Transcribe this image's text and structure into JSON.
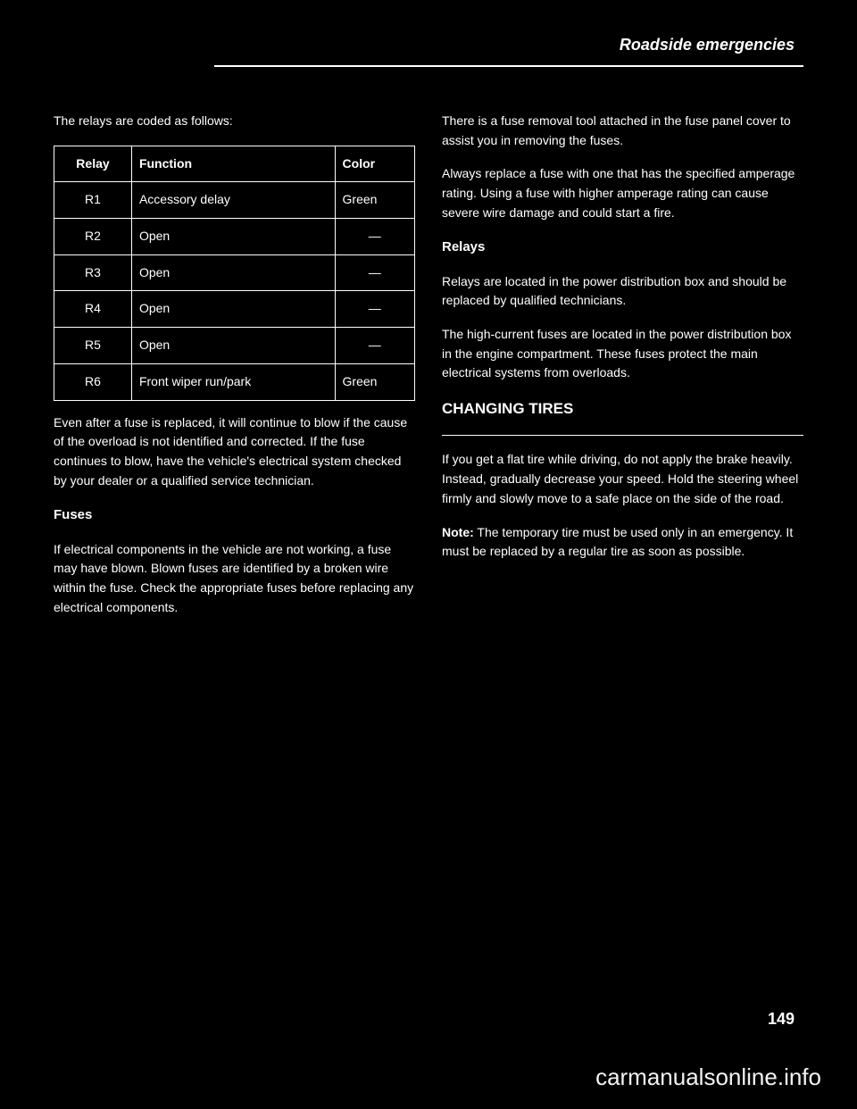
{
  "colors": {
    "background": "#000000",
    "text": "#ffffff",
    "border": "#ffffff"
  },
  "header": {
    "title": "Roadside emergencies"
  },
  "left": {
    "intro": "The relays are coded as follows:",
    "table": {
      "columns": [
        "Relay",
        "Function",
        "Color"
      ],
      "rows": [
        [
          "R1",
          "Accessory delay",
          "Green"
        ],
        [
          "R2",
          "Open",
          "—"
        ],
        [
          "R3",
          "Open",
          "—"
        ],
        [
          "R4",
          "Open",
          "—"
        ],
        [
          "R5",
          "Open",
          "—"
        ],
        [
          "R6",
          "Front wiper run/park",
          "Green"
        ]
      ]
    },
    "para1": "Even after a fuse is replaced, it will continue to blow if the cause of the overload is not identified and corrected. If the fuse continues to blow, have the vehicle's electrical system checked by your dealer or a qualified service technician.",
    "sub1_heading": "Fuses",
    "sub1_para": "If electrical components in the vehicle are not working, a fuse may have blown. Blown fuses are identified by a broken wire within the fuse. Check the appropriate fuses before replacing any electrical components."
  },
  "right": {
    "para1": "There is a fuse removal tool attached in the fuse panel cover to assist you in removing the fuses.",
    "para2": "Always replace a fuse with one that has the specified amperage rating. Using a fuse with higher amperage rating can cause severe wire damage and could start a fire.",
    "sub2_heading": "Relays",
    "sub2_para1": "Relays are located in the power distribution box and should be replaced by qualified technicians.",
    "sub2_para2": "The high-current fuses are located in the power distribution box in the engine compartment. These fuses protect the main electrical systems from overloads.",
    "section_heading": "CHANGING TIRES",
    "section_para1": "If you get a flat tire while driving, do not apply the brake heavily. Instead, gradually decrease your speed. Hold the steering wheel firmly and slowly move to a safe place on the side of the road.",
    "note_heading": "Note:",
    "note_text": " The temporary tire must be used only in an emergency. It must be replaced by a regular tire as soon as possible."
  },
  "pageNumber": "149",
  "watermark": "carmanualsonline.info"
}
